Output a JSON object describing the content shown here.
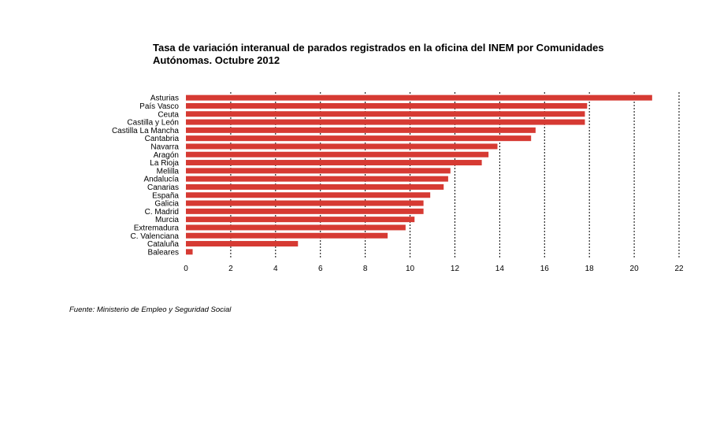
{
  "title_lines": [
    "Tasa de variación interanual de parados registrados en la oficina del INEM por Comunidades",
    "Autónomas.  Octubre 2012"
  ],
  "source": "Fuente: Ministerio de Empleo y Seguridad Social",
  "colors": {
    "bar": "#d63a33",
    "grid": "#000000"
  },
  "chart_data": {
    "type": "bar",
    "orientation": "horizontal",
    "title": "Tasa de variación interanual de parados registrados en la oficina del INEM por Comunidades Autónomas.  Octubre 2012",
    "categories": [
      "Asturias",
      "País Vasco",
      "Ceuta",
      "Castilla y León",
      "Castilla La Mancha",
      "Cantabria",
      "Navarra",
      "Aragón",
      "La Rioja",
      "Melilla",
      "Andalucía",
      "Canarias",
      "España",
      "Galicia",
      "C. Madrid",
      "Murcia",
      "Extremadura",
      "C. Valenciana",
      "Cataluña",
      "Baleares"
    ],
    "values": [
      20.8,
      17.9,
      17.8,
      17.8,
      15.6,
      15.4,
      13.9,
      13.5,
      13.2,
      11.8,
      11.7,
      11.5,
      10.9,
      10.6,
      10.6,
      10.2,
      9.8,
      9.0,
      5.0,
      0.3
    ],
    "xlim": [
      0,
      22
    ],
    "xticks": [
      0,
      2,
      4,
      6,
      8,
      10,
      12,
      14,
      16,
      18,
      20,
      22
    ],
    "grid": "vertical dashed",
    "legend": "none"
  }
}
